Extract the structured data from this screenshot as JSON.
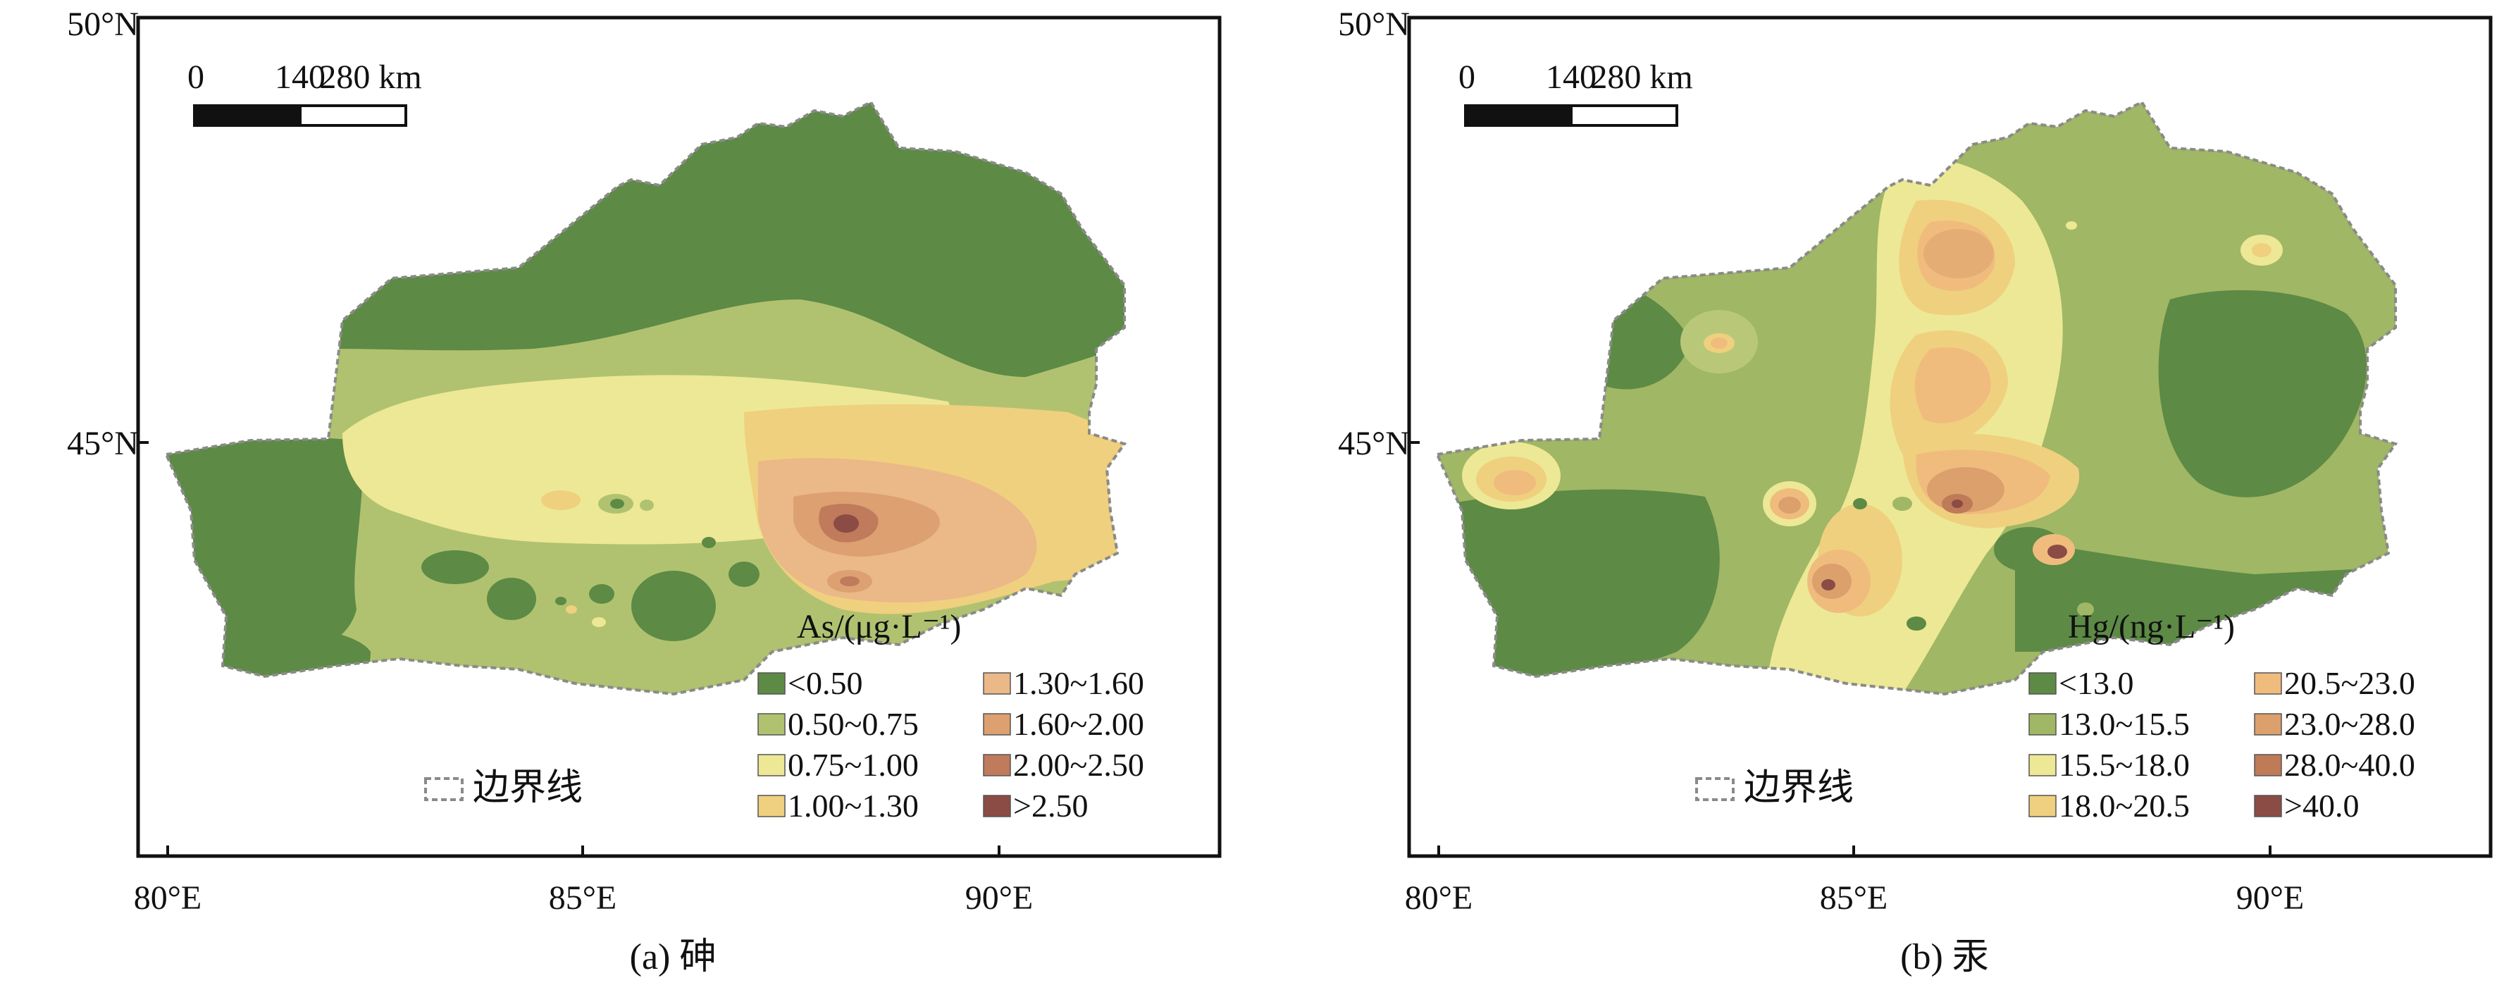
{
  "colors": {
    "frame": "#111111",
    "boundary": "#8a8a8a",
    "as_scale": [
      "#5d8a45",
      "#b0c270",
      "#ede895",
      "#efd07e",
      "#ebb887",
      "#dda070",
      "#c07a5c",
      "#8a4c44"
    ],
    "hg_scale": [
      "#5d8a45",
      "#a0b765",
      "#ede895",
      "#efd07e",
      "#efbc7e",
      "#dba06c",
      "#bf7a58",
      "#8a4c44"
    ]
  },
  "panels": [
    {
      "id": "a",
      "caption": "(a) 砷",
      "lat_labels": [
        "50°N",
        "45°N"
      ],
      "lon_labels": [
        "80°E",
        "85°E",
        "90°E"
      ],
      "scale_bar": {
        "ticks": [
          "0",
          "140",
          "280 km"
        ]
      },
      "legend_title": "As/(μg·L⁻¹)",
      "legend_items": [
        "<0.50",
        "0.50~0.75",
        "0.75~1.00",
        "1.00~1.30",
        "1.30~1.60",
        "1.60~2.00",
        "2.00~2.50",
        ">2.50"
      ],
      "boundary_label": "边界线"
    },
    {
      "id": "b",
      "caption": "(b) 汞",
      "lat_labels": [
        "50°N",
        "45°N"
      ],
      "lon_labels": [
        "80°E",
        "85°E",
        "90°E"
      ],
      "scale_bar": {
        "ticks": [
          "0",
          "140",
          "280 km"
        ]
      },
      "legend_title": "Hg/(ng·L⁻¹)",
      "legend_items": [
        "<13.0",
        "13.0~15.5",
        "15.5~18.0",
        "18.0~20.5",
        "20.5~23.0",
        "23.0~28.0",
        "28.0~40.0",
        ">40.0"
      ],
      "boundary_label": "边界线"
    }
  ]
}
